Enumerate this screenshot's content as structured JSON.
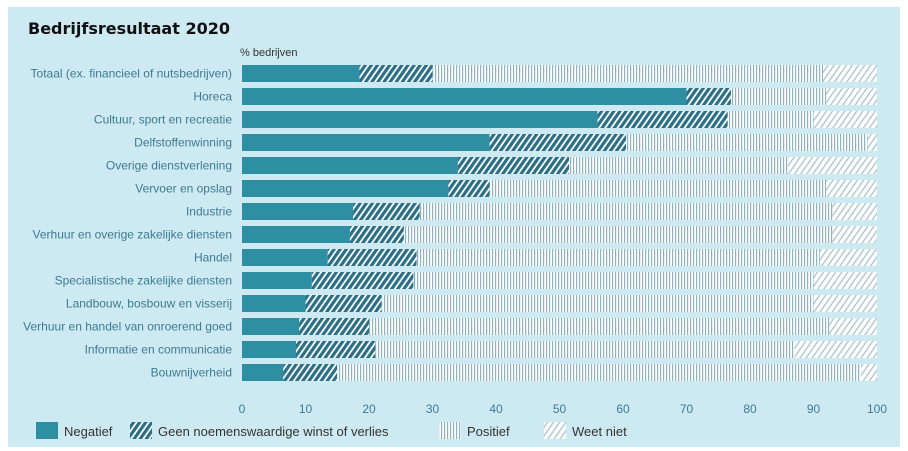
{
  "chart_data": {
    "type": "bar",
    "orientation": "horizontal",
    "stacked": true,
    "title": "Bedrijfsresultaat 2020",
    "unit_label": "% bedrijven",
    "xlim": [
      0,
      100
    ],
    "xticks": [
      0,
      10,
      20,
      30,
      40,
      50,
      60,
      70,
      80,
      90,
      100
    ],
    "categories": [
      "Totaal (ex. financieel of nutsbedrijven)",
      "Horeca",
      "Cultuur, sport en recreatie",
      "Delfstoffenwinning",
      "Overige dienstverlening",
      "Vervoer en opslag",
      "Industrie",
      "Verhuur en overige zakelijke diensten",
      "Handel",
      "Specialistische zakelijke diensten",
      "Landbouw, bosbouw en visserij",
      "Verhuur en handel van onroerend goed",
      "Informatie en communicatie",
      "Bouwnijverheid"
    ],
    "series": [
      {
        "name": "Negatief",
        "color": "#2e8fa3",
        "pattern": "solid",
        "values": [
          18.5,
          70,
          56,
          39,
          34,
          32.5,
          17.5,
          17,
          13.5,
          11,
          10,
          9,
          8.5,
          6.5
        ]
      },
      {
        "name": "Geen noemenswaardige winst of verlies",
        "color": "#2a6f86",
        "pattern": "hatch-dense",
        "values": [
          11.5,
          7,
          20.5,
          21.5,
          17.5,
          6.5,
          10.5,
          8.5,
          14,
          16,
          12,
          11,
          12.5,
          8.5
        ]
      },
      {
        "name": "Positief",
        "color": "#8fb3bd",
        "pattern": "vertical-lines",
        "values": [
          61.5,
          15,
          13.5,
          38,
          34.5,
          53,
          65,
          67.5,
          63.5,
          63,
          68,
          72.5,
          66,
          82.5
        ]
      },
      {
        "name": "Weet niet",
        "color": "#a8c4cc",
        "pattern": "hatch-light",
        "values": [
          8.5,
          8,
          10,
          1.5,
          14,
          8,
          7,
          7,
          9,
          10,
          10,
          7.5,
          13,
          2.5
        ]
      }
    ],
    "legend_position": "bottom-left",
    "grid": false
  }
}
